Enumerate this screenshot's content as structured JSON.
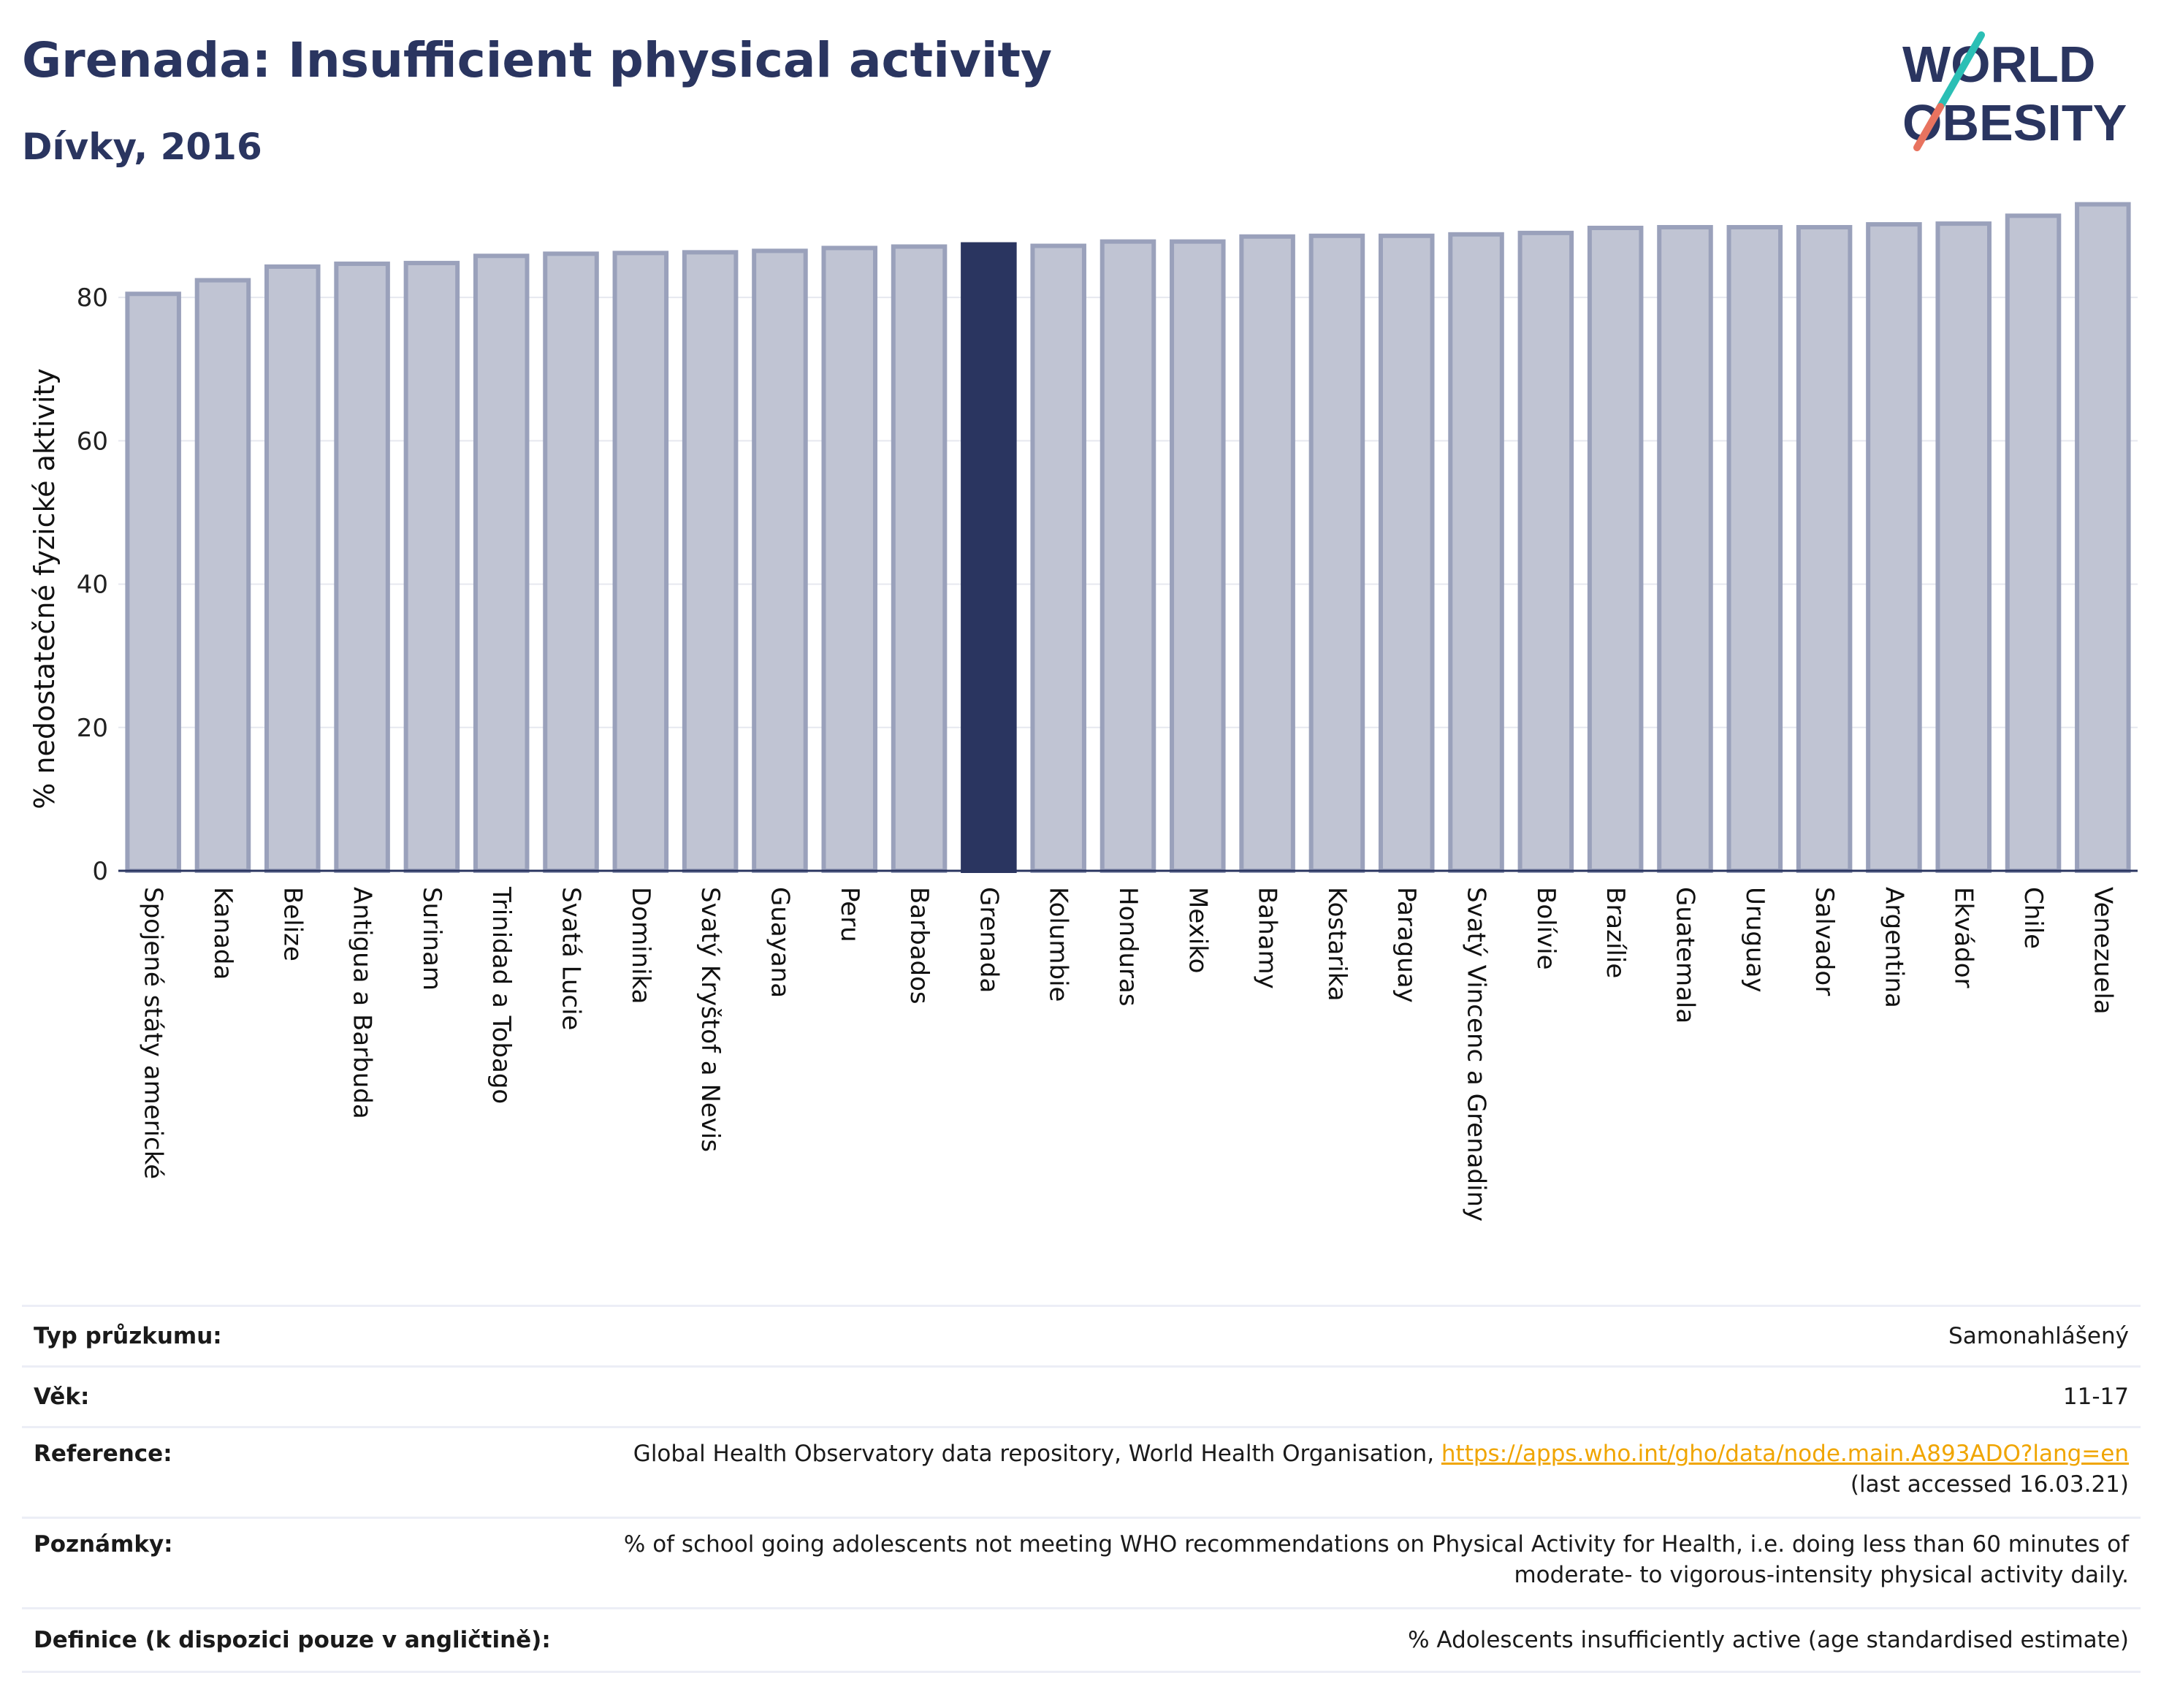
{
  "header": {
    "title": "Grenada: Insufficient physical activity",
    "subtitle": "Dívky, 2016"
  },
  "logo": {
    "line1": "WORLD",
    "line2": "OBESITY",
    "accent_colors": [
      "#2bbfb5",
      "#e8735f"
    ]
  },
  "colors": {
    "highlight": "#2a3560",
    "bar": "#c0c4d3",
    "bar_edge": "#9aa1bb",
    "axis": "#2a3560",
    "link": "#f0a500"
  },
  "chart_data": {
    "type": "bar",
    "title": "Grenada: Insufficient physical activity",
    "subtitle": "Dívky, 2016",
    "xlabel": "",
    "ylabel": "% nedostatečné fyzické aktivity",
    "ylim": [
      0,
      95
    ],
    "yticks": [
      0,
      20,
      40,
      60,
      80
    ],
    "grid": true,
    "highlight": "Grenada",
    "categories": [
      "Spojené státy americké",
      "Kanada",
      "Belize",
      "Antigua a Barbuda",
      "Surinam",
      "Trinidad a Tobago",
      "Svatá Lucie",
      "Dominika",
      "Svatý Kryštof a Nevis",
      "Guayana",
      "Peru",
      "Barbados",
      "Grenada",
      "Kolumbie",
      "Honduras",
      "Mexiko",
      "Bahamy",
      "Kostarika",
      "Paraguay",
      "Svatý Vincenc a Grenadiny",
      "Bolívie",
      "Brazílie",
      "Guatemala",
      "Uruguay",
      "Salvador",
      "Argentina",
      "Ekvádor",
      "Chile",
      "Venezuela"
    ],
    "values": [
      80.5,
      82.4,
      84.3,
      84.7,
      84.8,
      85.8,
      86.1,
      86.2,
      86.3,
      86.5,
      86.9,
      87.1,
      87.4,
      87.2,
      87.8,
      87.8,
      88.5,
      88.6,
      88.6,
      88.8,
      89.0,
      89.7,
      89.8,
      89.8,
      89.8,
      90.2,
      90.3,
      91.4,
      93.0
    ]
  },
  "info": {
    "rows": [
      {
        "key": "Typ průzkumu:",
        "value": "Samonahlášený"
      },
      {
        "key": "Věk:",
        "value": "11-17"
      },
      {
        "key": "Reference:",
        "value": "Global Health Observatory data repository, World Health Organisation,",
        "link": "https://apps.who.int/gho/data/node.main.A893ADO?lang=en",
        "value2": "(last accessed 16.03.21)"
      },
      {
        "key": "Poznámky:",
        "value": "% of school going adolescents not meeting WHO recommendations on Physical Activity for Health, i.e. doing less than 60 minutes of",
        "value2": "moderate- to vigorous-intensity physical activity daily."
      },
      {
        "key": "Definice (k dispozici pouze v angličtině):",
        "value": "% Adolescents insufficiently active (age standardised estimate)"
      }
    ]
  }
}
